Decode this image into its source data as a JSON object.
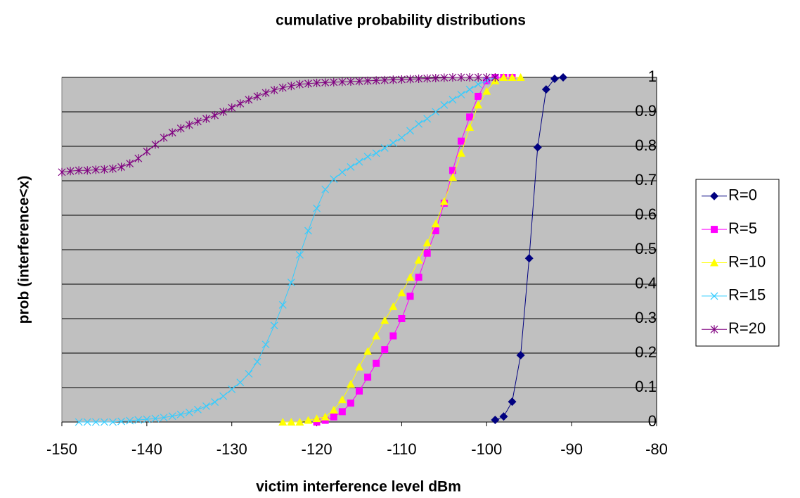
{
  "chart_data": {
    "type": "line",
    "title": "cumulative probability distributions",
    "x_label": "victim interference level dBm",
    "y_label": "prob (interference<x)",
    "xlim": [
      -150,
      -80
    ],
    "xticks": [
      -150,
      -140,
      -130,
      -120,
      -110,
      -100,
      -90,
      -80
    ],
    "ylim": [
      0,
      1
    ],
    "yticks": [
      0,
      0.1,
      0.2,
      0.3,
      0.4,
      0.5,
      0.6,
      0.7,
      0.8,
      0.9,
      1
    ],
    "grid": true,
    "legend": "right",
    "plot_background": "#c0c0c0",
    "series": [
      {
        "name": "R=0",
        "color": "#000080",
        "marker": "diamond",
        "x": [
          -99,
          -98,
          -97,
          -96,
          -95,
          -94,
          -93,
          -92,
          -91
        ],
        "values": [
          0.006,
          0.016,
          0.059,
          0.194,
          0.475,
          0.797,
          0.965,
          0.996,
          1.0
        ]
      },
      {
        "name": "R=5",
        "color": "#ff00ff",
        "marker": "square",
        "x": [
          -120,
          -119,
          -118,
          -117,
          -116,
          -115,
          -114,
          -113,
          -112,
          -111,
          -110,
          -109,
          -108,
          -107,
          -106,
          -105,
          -104,
          -103,
          -102,
          -101,
          -100,
          -99,
          -98,
          -97
        ],
        "values": [
          0.0,
          0.005,
          0.015,
          0.03,
          0.055,
          0.09,
          0.13,
          0.17,
          0.21,
          0.25,
          0.3,
          0.365,
          0.42,
          0.49,
          0.555,
          0.635,
          0.73,
          0.815,
          0.885,
          0.945,
          0.99,
          1.0,
          1.0,
          1.0
        ]
      },
      {
        "name": "R=10",
        "color": "#ffff00",
        "marker": "triangle",
        "x": [
          -124,
          -123,
          -122,
          -121,
          -120,
          -119,
          -118,
          -117,
          -116,
          -115,
          -114,
          -113,
          -112,
          -111,
          -110,
          -109,
          -108,
          -107,
          -106,
          -105,
          -104,
          -103,
          -102,
          -101,
          -100,
          -99,
          -98,
          -97,
          -96
        ],
        "values": [
          0.0,
          0.0,
          0.0,
          0.005,
          0.01,
          0.015,
          0.035,
          0.065,
          0.11,
          0.16,
          0.205,
          0.25,
          0.295,
          0.335,
          0.375,
          0.42,
          0.47,
          0.52,
          0.575,
          0.64,
          0.71,
          0.78,
          0.855,
          0.92,
          0.96,
          0.99,
          1.0,
          1.0,
          1.0
        ]
      },
      {
        "name": "R=15",
        "color": "#33ccff",
        "marker": "x",
        "x": [
          -148,
          -147,
          -146,
          -145,
          -144,
          -143,
          -142,
          -141,
          -140,
          -139,
          -138,
          -137,
          -136,
          -135,
          -134,
          -133,
          -132,
          -131,
          -130,
          -129,
          -128,
          -127,
          -126,
          -125,
          -124,
          -123,
          -122,
          -121,
          -120,
          -119,
          -118,
          -117,
          -116,
          -115,
          -114,
          -113,
          -112,
          -111,
          -110,
          -109,
          -108,
          -107,
          -106,
          -105,
          -104,
          -103,
          -102,
          -101,
          -100,
          -99
        ],
        "values": [
          0.0,
          0.0,
          0.0,
          0.0,
          0.0,
          0.002,
          0.004,
          0.006,
          0.008,
          0.01,
          0.013,
          0.017,
          0.022,
          0.028,
          0.036,
          0.046,
          0.058,
          0.075,
          0.095,
          0.115,
          0.14,
          0.175,
          0.225,
          0.28,
          0.34,
          0.405,
          0.485,
          0.555,
          0.62,
          0.675,
          0.705,
          0.725,
          0.74,
          0.755,
          0.77,
          0.78,
          0.795,
          0.81,
          0.825,
          0.845,
          0.865,
          0.88,
          0.9,
          0.92,
          0.935,
          0.95,
          0.965,
          0.98,
          0.99,
          1.0
        ]
      },
      {
        "name": "R=20",
        "color": "#800080",
        "marker": "asterisk",
        "x": [
          -150,
          -149,
          -148,
          -147,
          -146,
          -145,
          -144,
          -143,
          -142,
          -141,
          -140,
          -139,
          -138,
          -137,
          -136,
          -135,
          -134,
          -133,
          -132,
          -131,
          -130,
          -129,
          -128,
          -127,
          -126,
          -125,
          -124,
          -123,
          -122,
          -121,
          -120,
          -119,
          -118,
          -117,
          -116,
          -115,
          -114,
          -113,
          -112,
          -111,
          -110,
          -109,
          -108,
          -107,
          -106,
          -105,
          -104,
          -103,
          -102,
          -101,
          -100,
          -99
        ],
        "values": [
          0.725,
          0.728,
          0.73,
          0.73,
          0.732,
          0.733,
          0.735,
          0.74,
          0.75,
          0.765,
          0.785,
          0.805,
          0.825,
          0.84,
          0.852,
          0.862,
          0.872,
          0.88,
          0.89,
          0.9,
          0.912,
          0.924,
          0.935,
          0.945,
          0.955,
          0.963,
          0.97,
          0.975,
          0.98,
          0.982,
          0.984,
          0.985,
          0.986,
          0.987,
          0.988,
          0.989,
          0.99,
          0.991,
          0.992,
          0.993,
          0.994,
          0.995,
          0.996,
          0.997,
          0.998,
          0.999,
          1.0,
          1.0,
          1.0,
          1.0,
          1.0,
          1.0
        ]
      }
    ]
  }
}
